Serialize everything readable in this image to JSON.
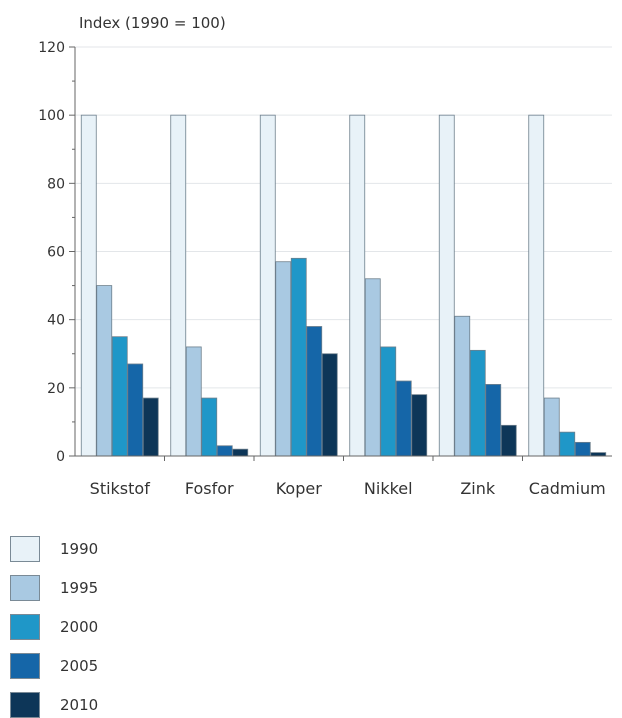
{
  "chart_data": {
    "type": "bar",
    "title": "",
    "ylabel": "Index (1990 = 100)",
    "xlabel": "",
    "ylim": [
      0,
      120
    ],
    "yticks": [
      0,
      20,
      40,
      60,
      80,
      100,
      120
    ],
    "grid": true,
    "legend_position": "bottom-left",
    "categories": [
      "Stikstof",
      "Fosfor",
      "Koper",
      "Nikkel",
      "Zink",
      "Cadmium"
    ],
    "series": [
      {
        "name": "1990",
        "color": "#e8f2f8",
        "values": [
          100,
          100,
          100,
          100,
          100,
          100
        ]
      },
      {
        "name": "1995",
        "color": "#a9c9e2",
        "values": [
          50,
          32,
          57,
          52,
          41,
          17
        ]
      },
      {
        "name": "2000",
        "color": "#1f97c8",
        "values": [
          35,
          17,
          58,
          32,
          31,
          7
        ]
      },
      {
        "name": "2005",
        "color": "#1566a8",
        "values": [
          27,
          3,
          38,
          22,
          21,
          4
        ]
      },
      {
        "name": "2010",
        "color": "#0d3658",
        "values": [
          17,
          2,
          30,
          18,
          9,
          1
        ]
      }
    ]
  }
}
